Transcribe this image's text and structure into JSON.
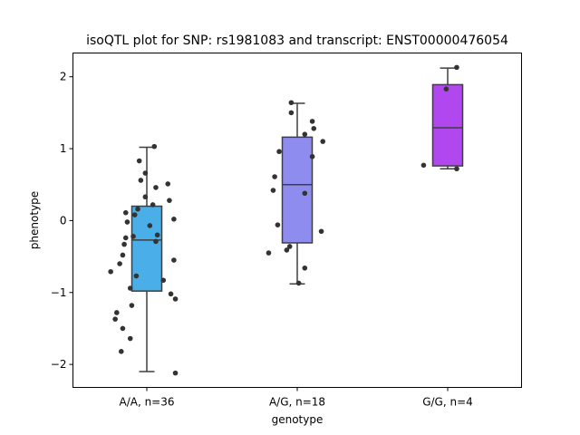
{
  "chart_data": {
    "type": "box",
    "title": "isoQTL plot for SNP: rs1981083 and transcript: ENST00000476054",
    "xlabel": "genotype",
    "ylabel": "phenotype",
    "ylim": [
      -2.32,
      2.33
    ],
    "yticks": [
      -2,
      -1,
      0,
      1,
      2
    ],
    "ytick_labels": [
      "−2",
      "−1",
      "0",
      "1",
      "2"
    ],
    "grid": false,
    "categories": [
      "A/A, n=36",
      "A/G, n=18",
      "G/G, n=4"
    ],
    "colors": [
      "#4aaee8",
      "#8f8cf0",
      "#b147ee"
    ],
    "boxes": [
      {
        "q1": -0.98,
        "median": -0.27,
        "q3": 0.2,
        "whisker_low": -2.1,
        "whisker_high": 1.02
      },
      {
        "q1": -0.31,
        "median": 0.5,
        "q3": 1.16,
        "whisker_low": -0.88,
        "whisker_high": 1.63
      },
      {
        "q1": 0.76,
        "median": 1.29,
        "q3": 1.89,
        "whisker_low": 0.72,
        "whisker_high": 2.12
      }
    ],
    "points": [
      [
        [
          0.05,
          1.03
        ],
        [
          -0.05,
          0.83
        ],
        [
          -0.01,
          0.66
        ],
        [
          -0.04,
          0.56
        ],
        [
          0.14,
          0.51
        ],
        [
          0.06,
          0.46
        ],
        [
          -0.01,
          0.33
        ],
        [
          0.15,
          0.28
        ],
        [
          0.04,
          0.22
        ],
        [
          -0.06,
          0.16
        ],
        [
          -0.14,
          0.11
        ],
        [
          -0.08,
          0.08
        ],
        [
          -0.13,
          -0.02
        ],
        [
          0.18,
          0.02
        ],
        [
          0.02,
          -0.07
        ],
        [
          0.07,
          -0.2
        ],
        [
          -0.09,
          -0.22
        ],
        [
          -0.14,
          -0.24
        ],
        [
          0.06,
          -0.29
        ],
        [
          -0.15,
          -0.33
        ],
        [
          -0.16,
          -0.48
        ],
        [
          0.18,
          -0.55
        ],
        [
          -0.18,
          -0.6
        ],
        [
          -0.24,
          -0.71
        ],
        [
          -0.07,
          -0.77
        ],
        [
          0.11,
          -0.83
        ],
        [
          -0.11,
          -0.94
        ],
        [
          0.16,
          -1.02
        ],
        [
          0.19,
          -1.09
        ],
        [
          -0.1,
          -1.18
        ],
        [
          -0.2,
          -1.28
        ],
        [
          -0.21,
          -1.37
        ],
        [
          -0.16,
          -1.5
        ],
        [
          -0.11,
          -1.64
        ],
        [
          -0.17,
          -1.82
        ],
        [
          0.19,
          -2.12
        ]
      ],
      [
        [
          -0.04,
          1.64
        ],
        [
          -0.04,
          1.5
        ],
        [
          0.1,
          1.38
        ],
        [
          0.11,
          1.28
        ],
        [
          0.05,
          1.2
        ],
        [
          0.17,
          1.1
        ],
        [
          -0.12,
          0.96
        ],
        [
          0.1,
          0.89
        ],
        [
          -0.15,
          0.61
        ],
        [
          -0.16,
          0.42
        ],
        [
          0.05,
          0.38
        ],
        [
          -0.13,
          -0.06
        ],
        [
          0.16,
          -0.15
        ],
        [
          -0.05,
          -0.36
        ],
        [
          -0.07,
          -0.41
        ],
        [
          -0.19,
          -0.45
        ],
        [
          0.05,
          -0.66
        ],
        [
          0.01,
          -0.87
        ]
      ],
      [
        [
          0.06,
          2.13
        ],
        [
          -0.01,
          1.83
        ],
        [
          -0.16,
          0.77
        ],
        [
          0.06,
          0.72
        ]
      ]
    ]
  }
}
